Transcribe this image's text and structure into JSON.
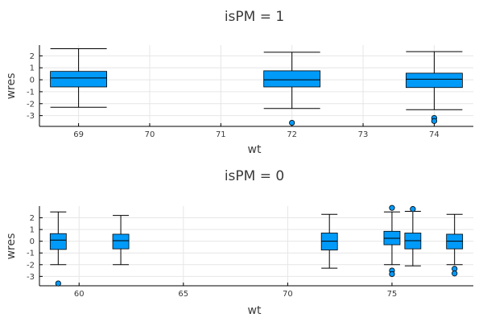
{
  "colors": {
    "box_fill": "#009AF9",
    "outline": "#000000",
    "grid": "#e6e6e6",
    "text": "#3a3a3a"
  },
  "chart_data": [
    {
      "type": "box",
      "title": "isPM = 1",
      "xlabel": "wt",
      "ylabel": "wres",
      "xlim": [
        68.45,
        74.55
      ],
      "ylim": [
        -3.9,
        2.9
      ],
      "xticks": [
        69,
        70,
        71,
        72,
        73,
        74
      ],
      "yticks": [
        -3,
        -2,
        -1,
        0,
        1,
        2
      ],
      "grid": true,
      "legend": "none",
      "boxes": [
        {
          "x": 69,
          "whisker_low": -2.3,
          "q1": -0.6,
          "median": 0.15,
          "q3": 0.7,
          "whisker_high": 2.6,
          "outliers": []
        },
        {
          "x": 72,
          "whisker_low": -2.4,
          "q1": -0.6,
          "median": 0.0,
          "q3": 0.75,
          "whisker_high": 2.3,
          "outliers": [
            -3.6
          ]
        },
        {
          "x": 74,
          "whisker_low": -2.5,
          "q1": -0.65,
          "median": 0.05,
          "q3": 0.55,
          "whisker_high": 2.35,
          "outliers": [
            -3.2,
            -3.45
          ]
        }
      ]
    },
    {
      "type": "box",
      "title": "isPM = 0",
      "xlabel": "wt",
      "ylabel": "wres",
      "xlim": [
        58.1,
        78.9
      ],
      "ylim": [
        -3.8,
        3.0
      ],
      "xticks": [
        60,
        65,
        70,
        75
      ],
      "yticks": [
        -3,
        -2,
        -1,
        0,
        1,
        2
      ],
      "grid": true,
      "legend": "none",
      "boxes": [
        {
          "x": 59,
          "whisker_low": -2.0,
          "q1": -0.7,
          "median": 0.1,
          "q3": 0.65,
          "whisker_high": 2.5,
          "outliers": [
            -3.6
          ]
        },
        {
          "x": 62,
          "whisker_low": -2.0,
          "q1": -0.65,
          "median": 0.05,
          "q3": 0.6,
          "whisker_high": 2.2,
          "outliers": []
        },
        {
          "x": 72,
          "whisker_low": -2.3,
          "q1": -0.75,
          "median": 0.0,
          "q3": 0.7,
          "whisker_high": 2.3,
          "outliers": []
        },
        {
          "x": 75,
          "whisker_low": -2.0,
          "q1": -0.3,
          "median": 0.25,
          "q3": 0.85,
          "whisker_high": 2.5,
          "outliers": [
            2.85,
            -2.5,
            -2.8
          ]
        },
        {
          "x": 76,
          "whisker_low": -2.1,
          "q1": -0.65,
          "median": 0.05,
          "q3": 0.7,
          "whisker_high": 2.55,
          "outliers": [
            2.75
          ]
        },
        {
          "x": 78,
          "whisker_low": -2.0,
          "q1": -0.65,
          "median": 0.0,
          "q3": 0.6,
          "whisker_high": 2.3,
          "outliers": [
            -2.35,
            -2.75
          ]
        }
      ]
    }
  ]
}
